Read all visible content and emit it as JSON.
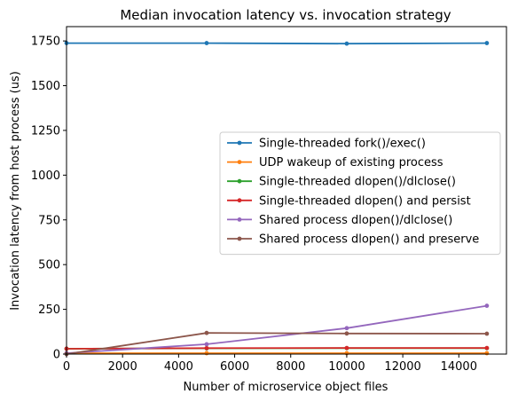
{
  "chart_data": {
    "type": "line",
    "title": "Median invocation latency vs. invocation strategy",
    "xlabel": "Number of microservice object files",
    "ylabel": "Invocation latency from host process (us)",
    "xlim": [
      0,
      15700
    ],
    "ylim": [
      0,
      1830
    ],
    "xticks": [
      0,
      2000,
      4000,
      6000,
      8000,
      10000,
      12000,
      14000
    ],
    "yticks": [
      0,
      250,
      500,
      750,
      1000,
      1250,
      1500,
      1750
    ],
    "x": [
      0,
      5000,
      10000,
      15000
    ],
    "grid": false,
    "legend_position": "center-right",
    "series": [
      {
        "name": "Single-threaded fork()/exec()",
        "color": "#1f77b4",
        "values": [
          1738,
          1738,
          1735,
          1738
        ]
      },
      {
        "name": "UDP wakeup of existing process",
        "color": "#ff7f0e",
        "values": [
          5,
          5,
          5,
          5
        ]
      },
      {
        "name": "Single-threaded dlopen()/dlclose()",
        "color": "#2ca02c",
        "values": [
          30,
          32,
          33,
          33
        ]
      },
      {
        "name": "Single-threaded dlopen() and persist",
        "color": "#d62728",
        "values": [
          30,
          33,
          34,
          34
        ]
      },
      {
        "name": "Shared process dlopen()/dlclose()",
        "color": "#9467bd",
        "values": [
          5,
          55,
          145,
          270
        ]
      },
      {
        "name": "Shared process dlopen() and preserve",
        "color": "#8c564b",
        "values": [
          0,
          118,
          115,
          114
        ]
      }
    ]
  }
}
